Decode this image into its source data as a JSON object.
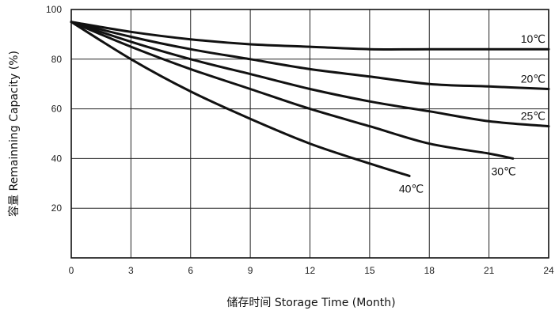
{
  "chart_data": {
    "type": "line",
    "xlabel": "储存时间 Storage Time (Month)",
    "ylabel": "容量 Remainning Capacity (%)",
    "xlim": [
      0,
      24
    ],
    "ylim": [
      0,
      100
    ],
    "x_ticks": [
      "0",
      "3",
      "6",
      "9",
      "12",
      "15",
      "18",
      "21",
      "24"
    ],
    "y_ticks": [
      "20",
      "40",
      "60",
      "80",
      "100"
    ],
    "grid": true,
    "series": [
      {
        "name": "10℃",
        "x": [
          0,
          3,
          6,
          9,
          12,
          15,
          18,
          21,
          24
        ],
        "values": [
          95,
          91,
          88,
          86,
          85,
          84,
          84,
          84,
          84
        ]
      },
      {
        "name": "20℃",
        "x": [
          0,
          3,
          6,
          9,
          12,
          15,
          18,
          21,
          24
        ],
        "values": [
          95,
          89,
          84,
          80,
          76,
          73,
          70,
          69,
          68
        ]
      },
      {
        "name": "25℃",
        "x": [
          0,
          3,
          6,
          9,
          12,
          15,
          18,
          21,
          24
        ],
        "values": [
          95,
          87,
          80,
          74,
          68,
          63,
          59,
          55,
          53
        ]
      },
      {
        "name": "30℃",
        "x": [
          0,
          3,
          6,
          9,
          12,
          15,
          18,
          21,
          22.2
        ],
        "values": [
          95,
          85,
          76,
          68,
          60,
          53,
          46,
          42,
          40
        ]
      },
      {
        "name": "40℃",
        "x": [
          0,
          3,
          6,
          9,
          12,
          15,
          17
        ],
        "values": [
          95,
          80,
          67,
          56,
          46,
          38,
          33
        ]
      }
    ]
  }
}
